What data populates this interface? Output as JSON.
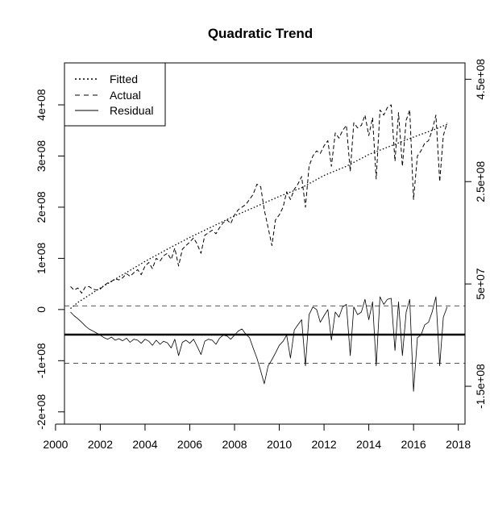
{
  "chart_data": {
    "type": "line",
    "title": "Quadratic Trend",
    "xlabel": "",
    "ylabel": "",
    "y2label": "",
    "xlim": [
      2000.4,
      2018.3
    ],
    "ylim": [
      -224000000,
      482000000
    ],
    "y2lim": [
      -224000000,
      482000000
    ],
    "x_ticks": [
      2000,
      2002,
      2004,
      2006,
      2008,
      2010,
      2012,
      2014,
      2016,
      2018
    ],
    "x_tick_labels": [
      "2000",
      "2002",
      "2004",
      "2006",
      "2008",
      "2010",
      "2012",
      "2014",
      "2016",
      "2018"
    ],
    "y_ticks": [
      -200000000,
      -100000000,
      0,
      100000000,
      200000000,
      300000000,
      400000000
    ],
    "y_tick_labels": [
      "-2e+08",
      "-1e+08",
      "0",
      "1e+08",
      "2e+08",
      "3e+08",
      "4e+08"
    ],
    "y2_ticks": [
      -150000000,
      50000000,
      250000000,
      450000000
    ],
    "y2_tick_labels": [
      "-1.5e+08",
      "5e+07",
      "2.5e+08",
      "4.5e+08"
    ],
    "grid": false,
    "legend": {
      "position": "top-left",
      "entries": [
        {
          "label": "Fitted",
          "style": "dotted"
        },
        {
          "label": "Actual",
          "style": "dashed"
        },
        {
          "label": "Residual",
          "style": "solid"
        }
      ]
    },
    "reference_lines": [
      {
        "y": 7000000,
        "style": "dashed",
        "color": "#555555"
      },
      {
        "y": -49000000,
        "style": "solid",
        "color": "#000000"
      },
      {
        "y": -105000000,
        "style": "dashed",
        "color": "#555555"
      }
    ],
    "series": [
      {
        "name": "Fitted",
        "style": "dotted",
        "color": "#000000",
        "x": [
          2000.67,
          2001,
          2002,
          2003,
          2004,
          2005,
          2006,
          2007,
          2008,
          2009,
          2010,
          2011,
          2012,
          2013,
          2014,
          2015,
          2016,
          2017,
          2017.5
        ],
        "y": [
          2000000,
          14000000,
          42000000,
          68000000,
          94000000,
          118000000,
          141000000,
          162000000,
          183000000,
          202000000,
          221000000,
          238000000,
          262000000,
          280000000,
          303000000,
          320000000,
          337000000,
          353000000,
          362000000
        ]
      },
      {
        "name": "Actual",
        "style": "dashed",
        "color": "#000000",
        "x": [
          2000.67,
          2000.83,
          2001,
          2001.17,
          2001.33,
          2001.5,
          2001.67,
          2001.83,
          2002,
          2002.17,
          2002.33,
          2002.5,
          2002.67,
          2002.83,
          2003,
          2003.17,
          2003.33,
          2003.5,
          2003.67,
          2003.83,
          2004,
          2004.17,
          2004.33,
          2004.5,
          2004.67,
          2004.83,
          2005,
          2005.17,
          2005.33,
          2005.5,
          2005.67,
          2005.83,
          2006,
          2006.17,
          2006.33,
          2006.5,
          2006.67,
          2006.83,
          2007,
          2007.17,
          2007.33,
          2007.5,
          2007.67,
          2007.83,
          2008,
          2008.17,
          2008.33,
          2008.5,
          2008.67,
          2008.83,
          2009,
          2009.17,
          2009.33,
          2009.5,
          2009.67,
          2009.83,
          2010,
          2010.17,
          2010.33,
          2010.5,
          2010.67,
          2010.83,
          2011,
          2011.17,
          2011.33,
          2011.5,
          2011.67,
          2011.83,
          2012,
          2012.17,
          2012.33,
          2012.5,
          2012.67,
          2012.83,
          2013,
          2013.17,
          2013.33,
          2013.5,
          2013.67,
          2013.83,
          2014,
          2014.17,
          2014.33,
          2014.5,
          2014.67,
          2014.83,
          2015,
          2015.17,
          2015.33,
          2015.5,
          2015.67,
          2015.83,
          2016,
          2016.17,
          2016.33,
          2016.5,
          2016.67,
          2016.83,
          2017,
          2017.17,
          2017.33,
          2017.5
        ],
        "y": [
          45000000,
          38000000,
          42000000,
          32000000,
          44000000,
          45000000,
          40000000,
          38000000,
          40000000,
          47000000,
          52000000,
          55000000,
          60000000,
          58000000,
          62000000,
          70000000,
          65000000,
          72000000,
          78000000,
          68000000,
          85000000,
          92000000,
          80000000,
          100000000,
          95000000,
          105000000,
          110000000,
          98000000,
          120000000,
          85000000,
          118000000,
          125000000,
          132000000,
          140000000,
          128000000,
          110000000,
          145000000,
          150000000,
          155000000,
          148000000,
          160000000,
          170000000,
          175000000,
          168000000,
          185000000,
          195000000,
          200000000,
          205000000,
          215000000,
          225000000,
          245000000,
          240000000,
          195000000,
          160000000,
          125000000,
          175000000,
          185000000,
          200000000,
          230000000,
          215000000,
          235000000,
          245000000,
          260000000,
          200000000,
          280000000,
          300000000,
          310000000,
          305000000,
          320000000,
          330000000,
          280000000,
          345000000,
          335000000,
          350000000,
          360000000,
          270000000,
          365000000,
          355000000,
          360000000,
          380000000,
          340000000,
          375000000,
          255000000,
          390000000,
          380000000,
          395000000,
          400000000,
          290000000,
          385000000,
          280000000,
          370000000,
          390000000,
          215000000,
          300000000,
          310000000,
          325000000,
          330000000,
          350000000,
          380000000,
          250000000,
          340000000,
          365000000
        ]
      },
      {
        "name": "Residual",
        "style": "solid",
        "color": "#000000",
        "x": [
          2000.67,
          2000.83,
          2001,
          2001.17,
          2001.33,
          2001.5,
          2001.67,
          2001.83,
          2002,
          2002.17,
          2002.33,
          2002.5,
          2002.67,
          2002.83,
          2003,
          2003.17,
          2003.33,
          2003.5,
          2003.67,
          2003.83,
          2004,
          2004.17,
          2004.33,
          2004.5,
          2004.67,
          2004.83,
          2005,
          2005.17,
          2005.33,
          2005.5,
          2005.67,
          2005.83,
          2006,
          2006.17,
          2006.33,
          2006.5,
          2006.67,
          2006.83,
          2007,
          2007.17,
          2007.33,
          2007.5,
          2007.67,
          2007.83,
          2008,
          2008.17,
          2008.33,
          2008.5,
          2008.67,
          2008.83,
          2009,
          2009.17,
          2009.33,
          2009.5,
          2009.67,
          2009.83,
          2010,
          2010.17,
          2010.33,
          2010.5,
          2010.67,
          2010.83,
          2011,
          2011.17,
          2011.33,
          2011.5,
          2011.67,
          2011.83,
          2012,
          2012.17,
          2012.33,
          2012.5,
          2012.67,
          2012.83,
          2013,
          2013.17,
          2013.33,
          2013.5,
          2013.67,
          2013.83,
          2014,
          2014.17,
          2014.33,
          2014.5,
          2014.67,
          2014.83,
          2015,
          2015.17,
          2015.33,
          2015.5,
          2015.67,
          2015.83,
          2016,
          2016.17,
          2016.33,
          2016.5,
          2016.67,
          2016.83,
          2017,
          2017.17,
          2017.33,
          2017.5
        ],
        "y": [
          -5000000,
          -12000000,
          -18000000,
          -25000000,
          -32000000,
          -38000000,
          -42000000,
          -46000000,
          -50000000,
          -55000000,
          -58000000,
          -54000000,
          -60000000,
          -57000000,
          -61000000,
          -56000000,
          -64000000,
          -58000000,
          -60000000,
          -66000000,
          -58000000,
          -62000000,
          -70000000,
          -60000000,
          -68000000,
          -62000000,
          -65000000,
          -75000000,
          -58000000,
          -90000000,
          -64000000,
          -60000000,
          -66000000,
          -58000000,
          -72000000,
          -88000000,
          -62000000,
          -58000000,
          -60000000,
          -68000000,
          -56000000,
          -50000000,
          -52000000,
          -58000000,
          -50000000,
          -42000000,
          -38000000,
          -48000000,
          -55000000,
          -75000000,
          -95000000,
          -120000000,
          -145000000,
          -110000000,
          -98000000,
          -85000000,
          -70000000,
          -62000000,
          -50000000,
          -95000000,
          -40000000,
          -30000000,
          -20000000,
          -110000000,
          -10000000,
          5000000,
          0,
          -25000000,
          -12000000,
          0,
          -60000000,
          -5000000,
          -15000000,
          5000000,
          10000000,
          -90000000,
          5000000,
          -10000000,
          -5000000,
          20000000,
          -20000000,
          15000000,
          -110000000,
          25000000,
          10000000,
          20000000,
          22000000,
          -80000000,
          15000000,
          -90000000,
          -5000000,
          20000000,
          -160000000,
          -55000000,
          -50000000,
          -30000000,
          -25000000,
          -5000000,
          25000000,
          -110000000,
          -15000000,
          5000000
        ]
      }
    ]
  }
}
